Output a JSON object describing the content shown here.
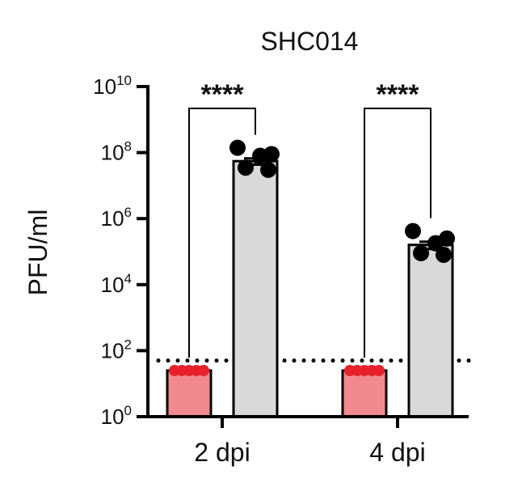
{
  "chart_data": {
    "type": "bar",
    "title": "SHC014",
    "ylabel": "PFU/ml",
    "xlabel": "",
    "y_scale": "log10",
    "ylim": [
      1,
      10000000000
    ],
    "y_ticks": [
      {
        "value": 1,
        "base": "10",
        "exp": "0"
      },
      {
        "value": 100,
        "base": "10",
        "exp": "2"
      },
      {
        "value": 10000,
        "base": "10",
        "exp": "4"
      },
      {
        "value": 1000000,
        "base": "10",
        "exp": "6"
      },
      {
        "value": 100000000,
        "base": "10",
        "exp": "8"
      },
      {
        "value": 10000000000,
        "base": "10",
        "exp": "10"
      }
    ],
    "categories": [
      "2 dpi",
      "4 dpi"
    ],
    "bar_colors": [
      "#f08a8f",
      "#d9d9d9"
    ],
    "point_colors": [
      "#e8202a",
      "#000000"
    ],
    "limit_of_detection": 50,
    "groups": [
      {
        "category": "2 dpi",
        "bars": [
          {
            "value": 25,
            "sem": 0,
            "points": [
              25,
              25,
              25,
              25,
              25
            ]
          },
          {
            "value": 55000000,
            "sem": 12000000,
            "points": [
              140000000,
              90000000,
              80000000,
              35000000,
              30000000
            ]
          }
        ],
        "significance": "****"
      },
      {
        "category": "4 dpi",
        "bars": [
          {
            "value": 25,
            "sem": 0,
            "points": [
              25,
              25,
              25,
              25,
              25
            ]
          },
          {
            "value": 160000,
            "sem": 40000,
            "points": [
              420000,
              250000,
              180000,
              90000,
              80000
            ]
          }
        ],
        "significance": "****"
      }
    ]
  }
}
